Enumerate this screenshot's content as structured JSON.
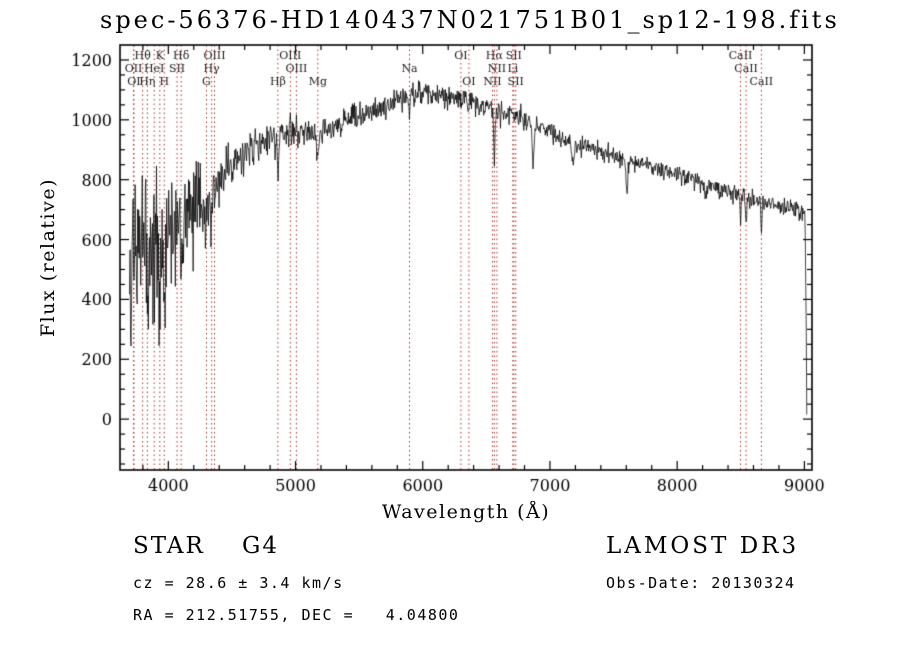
{
  "title": "spec-56376-HD140437N021751B01_sp12-198.fits",
  "axes": {
    "xlabel": "Wavelength (Å)",
    "ylabel": "Flux (relative)"
  },
  "footer": {
    "classification": "STAR    G4",
    "survey": "LAMOST DR3",
    "cz": "cz = 28.6 ± 3.4 km/s",
    "obs_date": "Obs-Date: 20130324",
    "coordinates": "RA = 212.51755, DEC =   4.04800"
  },
  "chart_data": {
    "type": "line",
    "title": "spec-56376-HD140437N021751B01_sp12-198.fits",
    "xlabel": "Wavelength (Å)",
    "ylabel": "Flux (relative)",
    "xlim": [
      3620,
      9060
    ],
    "ylim": [
      -170,
      1250
    ],
    "x_ticks": [
      4000,
      5000,
      6000,
      7000,
      8000,
      9000
    ],
    "x_minor_step": 200,
    "y_ticks": [
      0,
      200,
      400,
      600,
      800,
      1000,
      1200
    ],
    "y_minor_step": 50,
    "grid": false,
    "legend": "none",
    "line_color": "#000000",
    "spectral_line_color": "#a93226",
    "spectral_lines": [
      {
        "wavelength": 3727,
        "label": "OII",
        "row": 2
      },
      {
        "wavelength": 3729,
        "label": "OI",
        "row": 3
      },
      {
        "wavelength": 3798,
        "label": "Hθ",
        "row": 1
      },
      {
        "wavelength": 3835,
        "label": "Hη",
        "row": 3
      },
      {
        "wavelength": 3889,
        "label": "HeI",
        "row": 2
      },
      {
        "wavelength": 3933,
        "label": "K",
        "row": 1
      },
      {
        "wavelength": 3968,
        "label": "H",
        "row": 3
      },
      {
        "wavelength": 4068,
        "label": "SII",
        "row": 2
      },
      {
        "wavelength": 4101,
        "label": "Hδ",
        "row": 1
      },
      {
        "wavelength": 4300,
        "label": "G",
        "row": 3
      },
      {
        "wavelength": 4340,
        "label": "Hγ",
        "row": 2
      },
      {
        "wavelength": 4363,
        "label": "OIII",
        "row": 1
      },
      {
        "wavelength": 4861,
        "label": "Hβ",
        "row": 3
      },
      {
        "wavelength": 4959,
        "label": "OIII",
        "row": 1
      },
      {
        "wavelength": 5007,
        "label": "OIII",
        "row": 2
      },
      {
        "wavelength": 5175,
        "label": "Mg",
        "row": 3
      },
      {
        "wavelength": 5896,
        "label": "Na",
        "row": 2
      },
      {
        "wavelength": 6300,
        "label": "OI",
        "row": 1
      },
      {
        "wavelength": 6363,
        "label": "OI",
        "row": 3
      },
      {
        "wavelength": 6548,
        "label": "NII",
        "row": 3
      },
      {
        "wavelength": 6563,
        "label": "Hα",
        "row": 1
      },
      {
        "wavelength": 6583,
        "label": "NII",
        "row": 2
      },
      {
        "wavelength": 6708,
        "label": "Li",
        "row": 2
      },
      {
        "wavelength": 6716,
        "label": "SII",
        "row": 1
      },
      {
        "wavelength": 6731,
        "label": "SII",
        "row": 3
      },
      {
        "wavelength": 8498,
        "label": "CaII",
        "row": 1
      },
      {
        "wavelength": 8542,
        "label": "CaII",
        "row": 2
      },
      {
        "wavelength": 8662,
        "label": "CaII",
        "row": 3
      }
    ],
    "spectrum": {
      "wavelength_range": [
        3695,
        9020
      ],
      "sample_step": 4,
      "noise_seed": 20130324,
      "continuum_points": [
        [
          3695,
          480
        ],
        [
          3730,
          620
        ],
        [
          3780,
          645
        ],
        [
          3830,
          635
        ],
        [
          3880,
          610
        ],
        [
          3930,
          590
        ],
        [
          3970,
          600
        ],
        [
          4000,
          645
        ],
        [
          4060,
          660
        ],
        [
          4120,
          670
        ],
        [
          4180,
          700
        ],
        [
          4250,
          725
        ],
        [
          4320,
          745
        ],
        [
          4400,
          800
        ],
        [
          4500,
          845
        ],
        [
          4600,
          885
        ],
        [
          4700,
          915
        ],
        [
          4800,
          940
        ],
        [
          4900,
          950
        ],
        [
          5000,
          960
        ],
        [
          5100,
          960
        ],
        [
          5200,
          960
        ],
        [
          5300,
          980
        ],
        [
          5400,
          995
        ],
        [
          5500,
          1010
        ],
        [
          5600,
          1025
        ],
        [
          5700,
          1045
        ],
        [
          5800,
          1065
        ],
        [
          5900,
          1080
        ],
        [
          6000,
          1090
        ],
        [
          6100,
          1085
        ],
        [
          6200,
          1075
        ],
        [
          6300,
          1068
        ],
        [
          6400,
          1055
        ],
        [
          6500,
          1045
        ],
        [
          6600,
          1030
        ],
        [
          6700,
          1012
        ],
        [
          6800,
          1000
        ],
        [
          6900,
          978
        ],
        [
          7000,
          958
        ],
        [
          7100,
          935
        ],
        [
          7200,
          918
        ],
        [
          7300,
          905
        ],
        [
          7400,
          895
        ],
        [
          7500,
          880
        ],
        [
          7600,
          868
        ],
        [
          7700,
          855
        ],
        [
          7800,
          845
        ],
        [
          7900,
          832
        ],
        [
          8000,
          820
        ],
        [
          8100,
          805
        ],
        [
          8200,
          790
        ],
        [
          8300,
          775
        ],
        [
          8400,
          762
        ],
        [
          8500,
          748
        ],
        [
          8600,
          735
        ],
        [
          8700,
          722
        ],
        [
          8800,
          712
        ],
        [
          8900,
          703
        ],
        [
          9000,
          695
        ],
        [
          9020,
          690
        ]
      ],
      "noise_sigma_points": [
        [
          3695,
          140
        ],
        [
          3800,
          125
        ],
        [
          3900,
          115
        ],
        [
          4000,
          100
        ],
        [
          4100,
          88
        ],
        [
          4200,
          75
        ],
        [
          4300,
          62
        ],
        [
          4450,
          45
        ],
        [
          4600,
          34
        ],
        [
          4800,
          28
        ],
        [
          5000,
          25
        ],
        [
          5300,
          22
        ],
        [
          5600,
          22
        ],
        [
          6000,
          22
        ],
        [
          6300,
          19
        ],
        [
          6600,
          17
        ],
        [
          7000,
          16
        ],
        [
          7400,
          15
        ],
        [
          7800,
          15
        ],
        [
          8200,
          15
        ],
        [
          8600,
          16
        ],
        [
          9000,
          17
        ]
      ],
      "absorption_features": [
        {
          "center": 3798,
          "depth": 60,
          "width": 5
        },
        {
          "center": 3835,
          "depth": 60,
          "width": 5
        },
        {
          "center": 3889,
          "depth": 70,
          "width": 6
        },
        {
          "center": 3933,
          "depth": 170,
          "width": 7
        },
        {
          "center": 3968,
          "depth": 140,
          "width": 7
        },
        {
          "center": 4101,
          "depth": 110,
          "width": 6
        },
        {
          "center": 4300,
          "depth": 70,
          "width": 10
        },
        {
          "center": 4340,
          "depth": 100,
          "width": 6
        },
        {
          "center": 4861,
          "depth": 100,
          "width": 6
        },
        {
          "center": 5175,
          "depth": 65,
          "width": 10
        },
        {
          "center": 5893,
          "depth": 55,
          "width": 6
        },
        {
          "center": 6563,
          "depth": 170,
          "width": 5
        },
        {
          "center": 6868,
          "depth": 130,
          "width": 7
        },
        {
          "center": 7180,
          "depth": 55,
          "width": 10
        },
        {
          "center": 7605,
          "depth": 110,
          "width": 8
        },
        {
          "center": 8230,
          "depth": 45,
          "width": 10
        },
        {
          "center": 8498,
          "depth": 95,
          "width": 4
        },
        {
          "center": 8542,
          "depth": 105,
          "width": 4
        },
        {
          "center": 8662,
          "depth": 95,
          "width": 4
        }
      ]
    }
  }
}
